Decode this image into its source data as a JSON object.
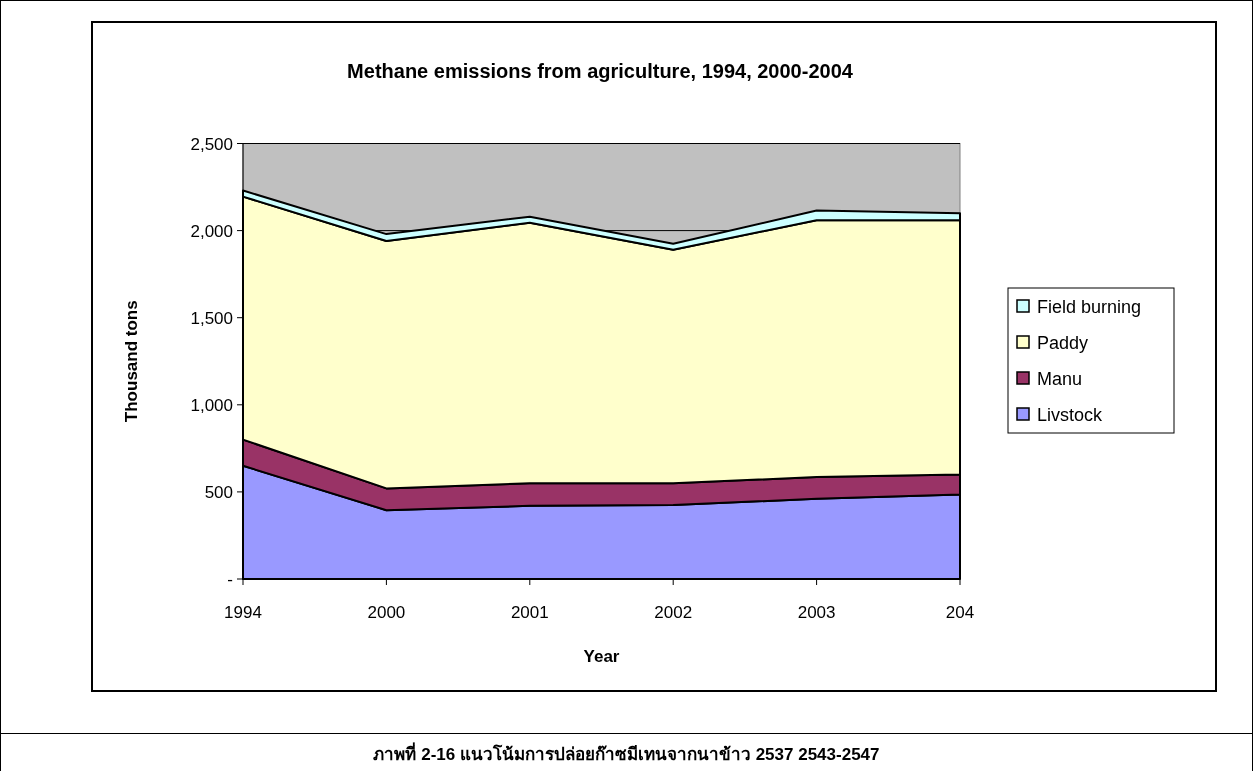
{
  "chart_data": {
    "type": "area",
    "stacked": true,
    "title": "Methane emissions from agriculture, 1994, 2000-2004",
    "xlabel": "Year",
    "ylabel": "Thousand tons",
    "categories": [
      "1994",
      "2000",
      "2001",
      "2002",
      "2003",
      "204"
    ],
    "series": [
      {
        "name": "Livstock",
        "color": "#9999ff",
        "values": [
          650,
          395,
          420,
          425,
          460,
          485
        ]
      },
      {
        "name": "Manu",
        "color": "#993366",
        "values": [
          150,
          125,
          130,
          125,
          125,
          115
        ]
      },
      {
        "name": "Paddy",
        "color": "#ffffcc",
        "values": [
          1395,
          1420,
          1495,
          1340,
          1475,
          1460
        ]
      },
      {
        "name": "Field burning",
        "color": "#ccffff",
        "values": [
          35,
          40,
          35,
          35,
          55,
          40
        ]
      }
    ],
    "ylim": [
      0,
      2500
    ],
    "yticks": [
      {
        "value": 0,
        "label": "-"
      },
      {
        "value": 500,
        "label": "500"
      },
      {
        "value": 1000,
        "label": "1,000"
      },
      {
        "value": 1500,
        "label": "1,500"
      },
      {
        "value": 2000,
        "label": "2,000"
      },
      {
        "value": 2500,
        "label": "2,500"
      }
    ],
    "grid": "y",
    "legend": "right",
    "annotations": [
      "ภาพที่ 2-16 แนวโน้มการปล่อยก๊าซมีเทนจากนาข้าว 2537 2543-2547"
    ]
  }
}
